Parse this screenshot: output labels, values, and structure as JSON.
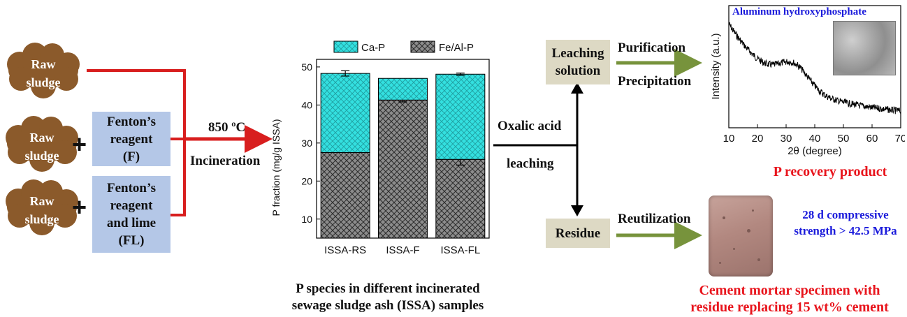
{
  "inputs": {
    "sludge1": "Raw\nsludge",
    "sludge2": "Raw\nsludge",
    "sludge3": "Raw\nsludge",
    "fenton": "Fenton’s\nreagent\n(F)",
    "fenton_lime": "Fenton’s\nreagent\nand lime\n(FL)",
    "plus": "+"
  },
  "process": {
    "temperature": "850 ºC",
    "incineration": "Incineration",
    "oxalic": "Oxalic acid",
    "leaching": "leaching"
  },
  "chart_data": {
    "type": "bar",
    "stacked": true,
    "categories": [
      "ISSA-RS",
      "ISSA-F",
      "ISSA-FL"
    ],
    "series": [
      {
        "name": "Fe/Al-P",
        "values": [
          27.5,
          41.3,
          25.7
        ],
        "errors": [
          0,
          0.5,
          1.5
        ]
      },
      {
        "name": "Ca-P",
        "values": [
          20.8,
          5.7,
          22.4
        ],
        "errors": [
          0.7,
          0,
          0.3
        ]
      }
    ],
    "ylabel": "P fraction (mg/g ISSA)",
    "ylim": [
      5,
      52
    ],
    "yticks": [
      10,
      20,
      30,
      40,
      50
    ],
    "legend": "top",
    "colors": {
      "Ca-P": "#33e0e0",
      "Fe/Al-P": "#8c8c8c"
    }
  },
  "chart_caption": "P species in different incinerated\nsewage sludge ash (ISSA) samples",
  "right": {
    "leaching_solution": "Leaching\nsolution",
    "residue": "Residue",
    "purification": "Purification",
    "precipitation": "Precipitation",
    "reutilization": "Reutilization",
    "xrd_label": "Aluminum hydroxyphosphate",
    "xrd_xlabel": "2θ (degree)",
    "xrd_ylabel": "Intensity (a.u.)",
    "xrd_xticks": [
      10,
      20,
      30,
      40,
      50,
      60,
      70
    ],
    "p_recovery": "P recovery product",
    "strength": "28 d compressive\nstrength > 42.5 MPa",
    "mortar_caption": "Cement mortar specimen with\nresidue replacing 15 wt% cement"
  },
  "colors": {
    "cloud": "#8b5a2b",
    "red_arrow": "#d81e1e",
    "green_arrow": "#77933c",
    "blue_box": "#b4c7e7",
    "tan_box": "#ddd9c4"
  }
}
